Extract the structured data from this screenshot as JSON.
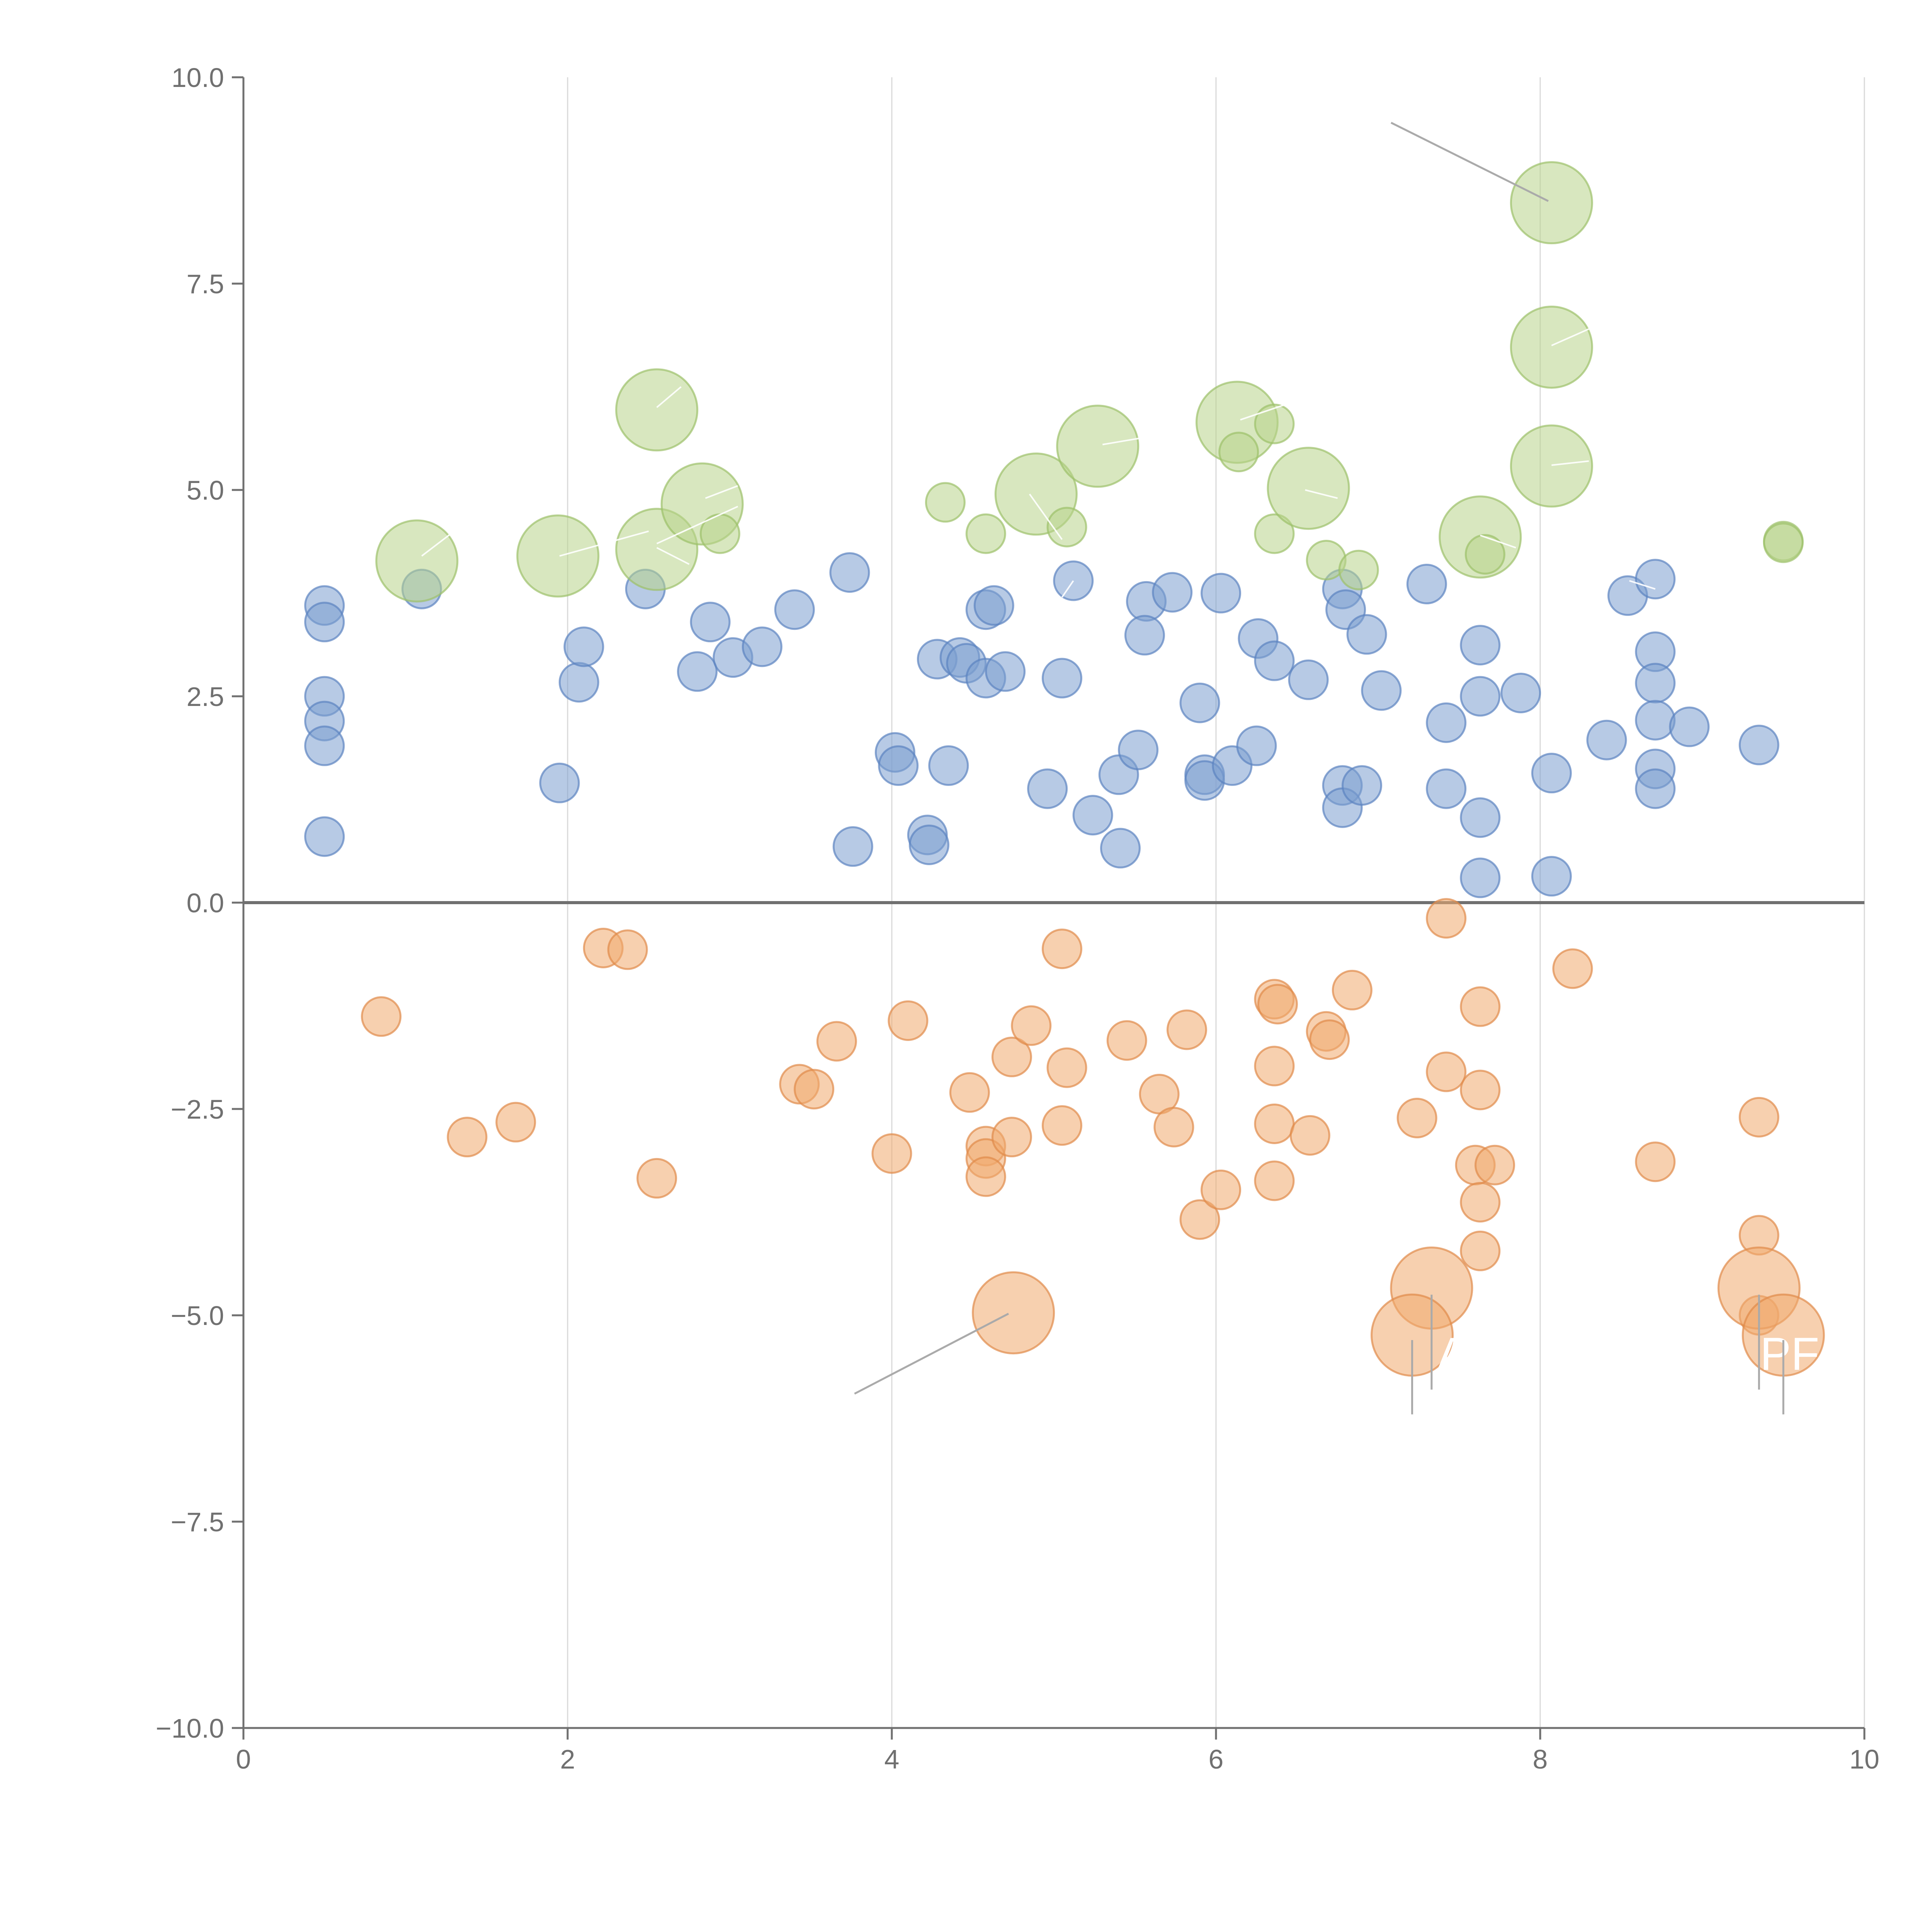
{
  "chart_data": {
    "type": "scatter",
    "title": "",
    "xlabel": "",
    "ylabel": "",
    "xlim": [
      0,
      10
    ],
    "ylim": [
      -10,
      10
    ],
    "xticks": [
      "0",
      "2",
      "4",
      "6",
      "8",
      "10"
    ],
    "yticks": [
      "10.0",
      "7.5",
      "5.0",
      "2.5",
      "0.0",
      "−2.5",
      "−5.0",
      "−7.5",
      "−10.0"
    ],
    "xtick_values": [
      0,
      2,
      4,
      6,
      8,
      10
    ],
    "ytick_values": [
      10,
      7.5,
      5,
      2.5,
      0,
      -2.5,
      -5,
      -7.5,
      -10
    ],
    "grid": "vertical",
    "colors": {
      "blue": "#7b9fd0",
      "blue_stroke": "#5b83c0",
      "orange": "#f0a96e",
      "orange_stroke": "#e08a4a",
      "green": "#b8d48a",
      "green_stroke": "#9cc06a",
      "axis": "#707070",
      "grid": "#d9d9d9"
    },
    "series": [
      {
        "name": "blue",
        "color": "blue",
        "points": [
          [
            0.5,
            3.6,
            1
          ],
          [
            0.5,
            3.4,
            1
          ],
          [
            0.5,
            2.5,
            1
          ],
          [
            0.5,
            2.2,
            1
          ],
          [
            0.5,
            1.9,
            1
          ],
          [
            0.5,
            0.8,
            1
          ],
          [
            1.1,
            3.8,
            1
          ],
          [
            1.95,
            1.45,
            1
          ],
          [
            2.07,
            2.67,
            1
          ],
          [
            2.1,
            3.1,
            1
          ],
          [
            2.48,
            3.8,
            1
          ],
          [
            2.8,
            2.8,
            1
          ],
          [
            2.88,
            3.4,
            1
          ],
          [
            3.02,
            2.97,
            1
          ],
          [
            3.2,
            3.1,
            1
          ],
          [
            3.4,
            3.55,
            1
          ],
          [
            3.74,
            4.0,
            1
          ],
          [
            3.76,
            0.68,
            1
          ],
          [
            4.02,
            1.82,
            1
          ],
          [
            4.04,
            1.66,
            1
          ],
          [
            4.22,
            0.82,
            1
          ],
          [
            4.23,
            0.7,
            1
          ],
          [
            4.28,
            2.95,
            1
          ],
          [
            4.35,
            1.66,
            1
          ],
          [
            4.42,
            2.97,
            1
          ],
          [
            4.46,
            2.9,
            1
          ],
          [
            4.58,
            3.55,
            1
          ],
          [
            4.58,
            2.72,
            1
          ],
          [
            4.63,
            3.6,
            1
          ],
          [
            4.7,
            2.8,
            1
          ],
          [
            4.96,
            1.38,
            1
          ],
          [
            5.05,
            2.72,
            1
          ],
          [
            5.12,
            3.9,
            1
          ],
          [
            5.24,
            1.06,
            1
          ],
          [
            5.4,
            1.55,
            1
          ],
          [
            5.41,
            0.66,
            1
          ],
          [
            5.52,
            1.85,
            1
          ],
          [
            5.57,
            3.65,
            1
          ],
          [
            5.56,
            3.24,
            1
          ],
          [
            5.73,
            3.76,
            1
          ],
          [
            5.9,
            2.42,
            1
          ],
          [
            5.93,
            1.55,
            1
          ],
          [
            5.93,
            1.48,
            1
          ],
          [
            6.03,
            3.75,
            1
          ],
          [
            6.1,
            1.66,
            1
          ],
          [
            6.25,
            1.9,
            1
          ],
          [
            6.26,
            3.2,
            1
          ],
          [
            6.36,
            2.93,
            1
          ],
          [
            6.57,
            2.7,
            1
          ],
          [
            6.78,
            3.8,
            1
          ],
          [
            6.78,
            1.42,
            1
          ],
          [
            6.78,
            1.15,
            1
          ],
          [
            6.8,
            3.55,
            1
          ],
          [
            6.9,
            1.42,
            1
          ],
          [
            6.93,
            3.25,
            1
          ],
          [
            7.02,
            2.57,
            1
          ],
          [
            7.3,
            3.86,
            1
          ],
          [
            7.42,
            2.18,
            1
          ],
          [
            7.42,
            1.38,
            1
          ],
          [
            7.63,
            3.12,
            1
          ],
          [
            7.63,
            2.5,
            1
          ],
          [
            7.63,
            1.03,
            1
          ],
          [
            7.63,
            0.3,
            1
          ],
          [
            7.88,
            2.54,
            1
          ],
          [
            8.07,
            1.57,
            1
          ],
          [
            8.07,
            0.32,
            1
          ],
          [
            8.41,
            1.97,
            1
          ],
          [
            8.54,
            3.72,
            1
          ],
          [
            8.71,
            3.92,
            1
          ],
          [
            8.71,
            3.04,
            1
          ],
          [
            8.71,
            2.66,
            1
          ],
          [
            8.71,
            2.21,
            1
          ],
          [
            8.71,
            1.62,
            1
          ],
          [
            8.71,
            1.38,
            1
          ],
          [
            8.92,
            2.13,
            1
          ],
          [
            9.35,
            1.91,
            1
          ]
        ]
      },
      {
        "name": "orange",
        "color": "orange",
        "points": [
          [
            0.85,
            -1.38,
            1
          ],
          [
            1.38,
            -2.84,
            1
          ],
          [
            1.68,
            -2.66,
            1
          ],
          [
            2.22,
            -0.55,
            1
          ],
          [
            2.37,
            -0.57,
            1
          ],
          [
            2.55,
            -3.34,
            1
          ],
          [
            3.43,
            -2.2,
            1
          ],
          [
            3.52,
            -2.26,
            1
          ],
          [
            3.66,
            -1.68,
            1
          ],
          [
            4.0,
            -3.04,
            1
          ],
          [
            4.1,
            -1.43,
            1
          ],
          [
            4.48,
            -2.3,
            1
          ],
          [
            4.58,
            -2.95,
            1
          ],
          [
            4.58,
            -3.1,
            1
          ],
          [
            4.58,
            -3.32,
            1
          ],
          [
            4.74,
            -1.87,
            1
          ],
          [
            4.74,
            -2.84,
            1
          ],
          [
            4.86,
            -1.49,
            1
          ],
          [
            5.05,
            -0.56,
            1
          ],
          [
            5.05,
            -2.7,
            1
          ],
          [
            5.08,
            -2.0,
            1
          ],
          [
            5.45,
            -1.67,
            1
          ],
          [
            5.65,
            -2.32,
            1
          ],
          [
            5.74,
            -2.72,
            1
          ],
          [
            5.82,
            -1.54,
            1
          ],
          [
            5.9,
            -3.84,
            1
          ],
          [
            6.03,
            -3.48,
            1
          ],
          [
            6.36,
            -1.17,
            1
          ],
          [
            6.36,
            -1.98,
            1
          ],
          [
            6.36,
            -2.68,
            1
          ],
          [
            6.36,
            -3.37,
            1
          ],
          [
            6.38,
            -1.23,
            1
          ],
          [
            6.68,
            -1.56,
            1
          ],
          [
            6.7,
            -1.66,
            1
          ],
          [
            6.58,
            -2.82,
            1
          ],
          [
            6.84,
            -1.06,
            1
          ],
          [
            7.24,
            -2.61,
            1
          ],
          [
            7.42,
            -0.19,
            1
          ],
          [
            7.42,
            -2.05,
            1
          ],
          [
            7.63,
            -1.26,
            1
          ],
          [
            7.63,
            -2.27,
            1
          ],
          [
            7.6,
            -3.18,
            1
          ],
          [
            7.72,
            -3.18,
            1
          ],
          [
            7.63,
            -3.63,
            1
          ],
          [
            7.63,
            -4.22,
            1
          ],
          [
            8.2,
            -0.8,
            1
          ],
          [
            8.71,
            -3.14,
            1
          ],
          [
            9.35,
            -2.6,
            1
          ],
          [
            9.35,
            -4.03,
            1
          ],
          [
            9.35,
            -5.0,
            1
          ],
          [
            4.75,
            -4.97,
            2.1
          ],
          [
            7.33,
            -4.67,
            2.1
          ],
          [
            7.21,
            -5.24,
            2.1
          ],
          [
            9.35,
            -4.67,
            2.1
          ],
          [
            9.5,
            -5.24,
            2.1
          ]
        ]
      },
      {
        "name": "green",
        "color": "green",
        "points": [
          [
            1.07,
            4.14,
            2.1
          ],
          [
            1.94,
            4.2,
            2.1
          ],
          [
            2.55,
            5.97,
            2.1
          ],
          [
            2.55,
            4.28,
            2.1
          ],
          [
            2.83,
            4.83,
            2.1
          ],
          [
            2.94,
            4.47,
            1
          ],
          [
            4.33,
            4.85,
            1
          ],
          [
            4.58,
            4.47,
            1
          ],
          [
            4.89,
            4.95,
            2.1
          ],
          [
            5.08,
            4.55,
            1
          ],
          [
            5.27,
            5.53,
            2.1
          ],
          [
            6.13,
            5.82,
            2.1
          ],
          [
            6.14,
            5.46,
            1
          ],
          [
            6.36,
            5.8,
            1
          ],
          [
            6.36,
            4.47,
            1
          ],
          [
            6.57,
            5.02,
            2.1
          ],
          [
            6.68,
            4.15,
            1
          ],
          [
            6.88,
            4.03,
            1
          ],
          [
            7.63,
            4.43,
            2.1
          ],
          [
            7.66,
            4.22,
            1
          ],
          [
            8.07,
            8.48,
            2.1
          ],
          [
            8.07,
            6.73,
            2.1
          ],
          [
            8.07,
            5.29,
            2.1
          ],
          [
            9.5,
            4.38,
            1
          ],
          [
            9.5,
            4.36,
            1
          ]
        ]
      }
    ],
    "annotations": {
      "sw_label": "A",
      "se_label": "PF"
    }
  }
}
